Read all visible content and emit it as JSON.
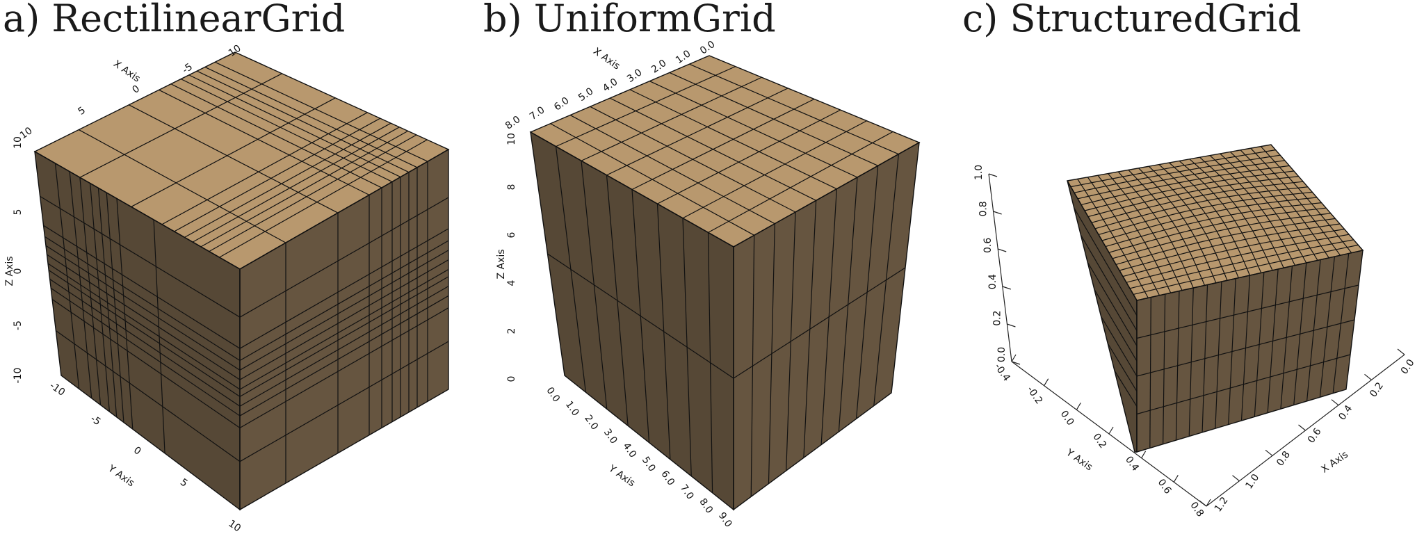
{
  "panels": {
    "a": {
      "title": "a) RectilinearGrid",
      "x_axis": {
        "label": "X Axis",
        "ticks": [
          "-10",
          "-5",
          "0",
          "5",
          "10"
        ]
      },
      "y_axis": {
        "label": "Y Axis",
        "ticks": [
          "-10",
          "-5",
          "0",
          "5",
          "10"
        ]
      },
      "z_axis": {
        "label": "Z Axis",
        "ticks": [
          "-10",
          "-5",
          "0",
          "5",
          "10"
        ]
      }
    },
    "b": {
      "title": "b) UniformGrid",
      "x_axis": {
        "label": "X Axis",
        "ticks": [
          "8.0",
          "7.0",
          "6.0",
          "5.0",
          "4.0",
          "3.0",
          "2.0",
          "1.0",
          "0.0"
        ]
      },
      "y_axis": {
        "label": "Y Axis",
        "ticks": [
          "0.0",
          "1.0",
          "2.0",
          "3.0",
          "4.0",
          "5.0",
          "6.0",
          "7.0",
          "8.0",
          "9.0"
        ]
      },
      "z_axis": {
        "label": "Z Axis",
        "ticks": [
          "0",
          "2",
          "4",
          "6",
          "8",
          "10"
        ]
      }
    },
    "c": {
      "title": "c) StructuredGrid",
      "x_axis": {
        "label": "X Axis",
        "ticks": [
          "1.2",
          "1.0",
          "0.8",
          "0.6",
          "0.4",
          "0.2",
          "0.0"
        ]
      },
      "y_axis": {
        "label": "Y Axis",
        "ticks": [
          "-0.4",
          "-0.2",
          "0.0",
          "0.2",
          "0.4",
          "0.6",
          "0.8"
        ]
      },
      "z_axis": {
        "label": "Z Axis",
        "ticks": [
          "0.0",
          "0.2",
          "0.4",
          "0.6",
          "0.8",
          "1.0"
        ]
      }
    }
  },
  "colors": {
    "top_face": "#b8986e",
    "left_face": "#564836",
    "right_face": "#665540",
    "grid_line": "#111111",
    "background": "#ffffff"
  }
}
